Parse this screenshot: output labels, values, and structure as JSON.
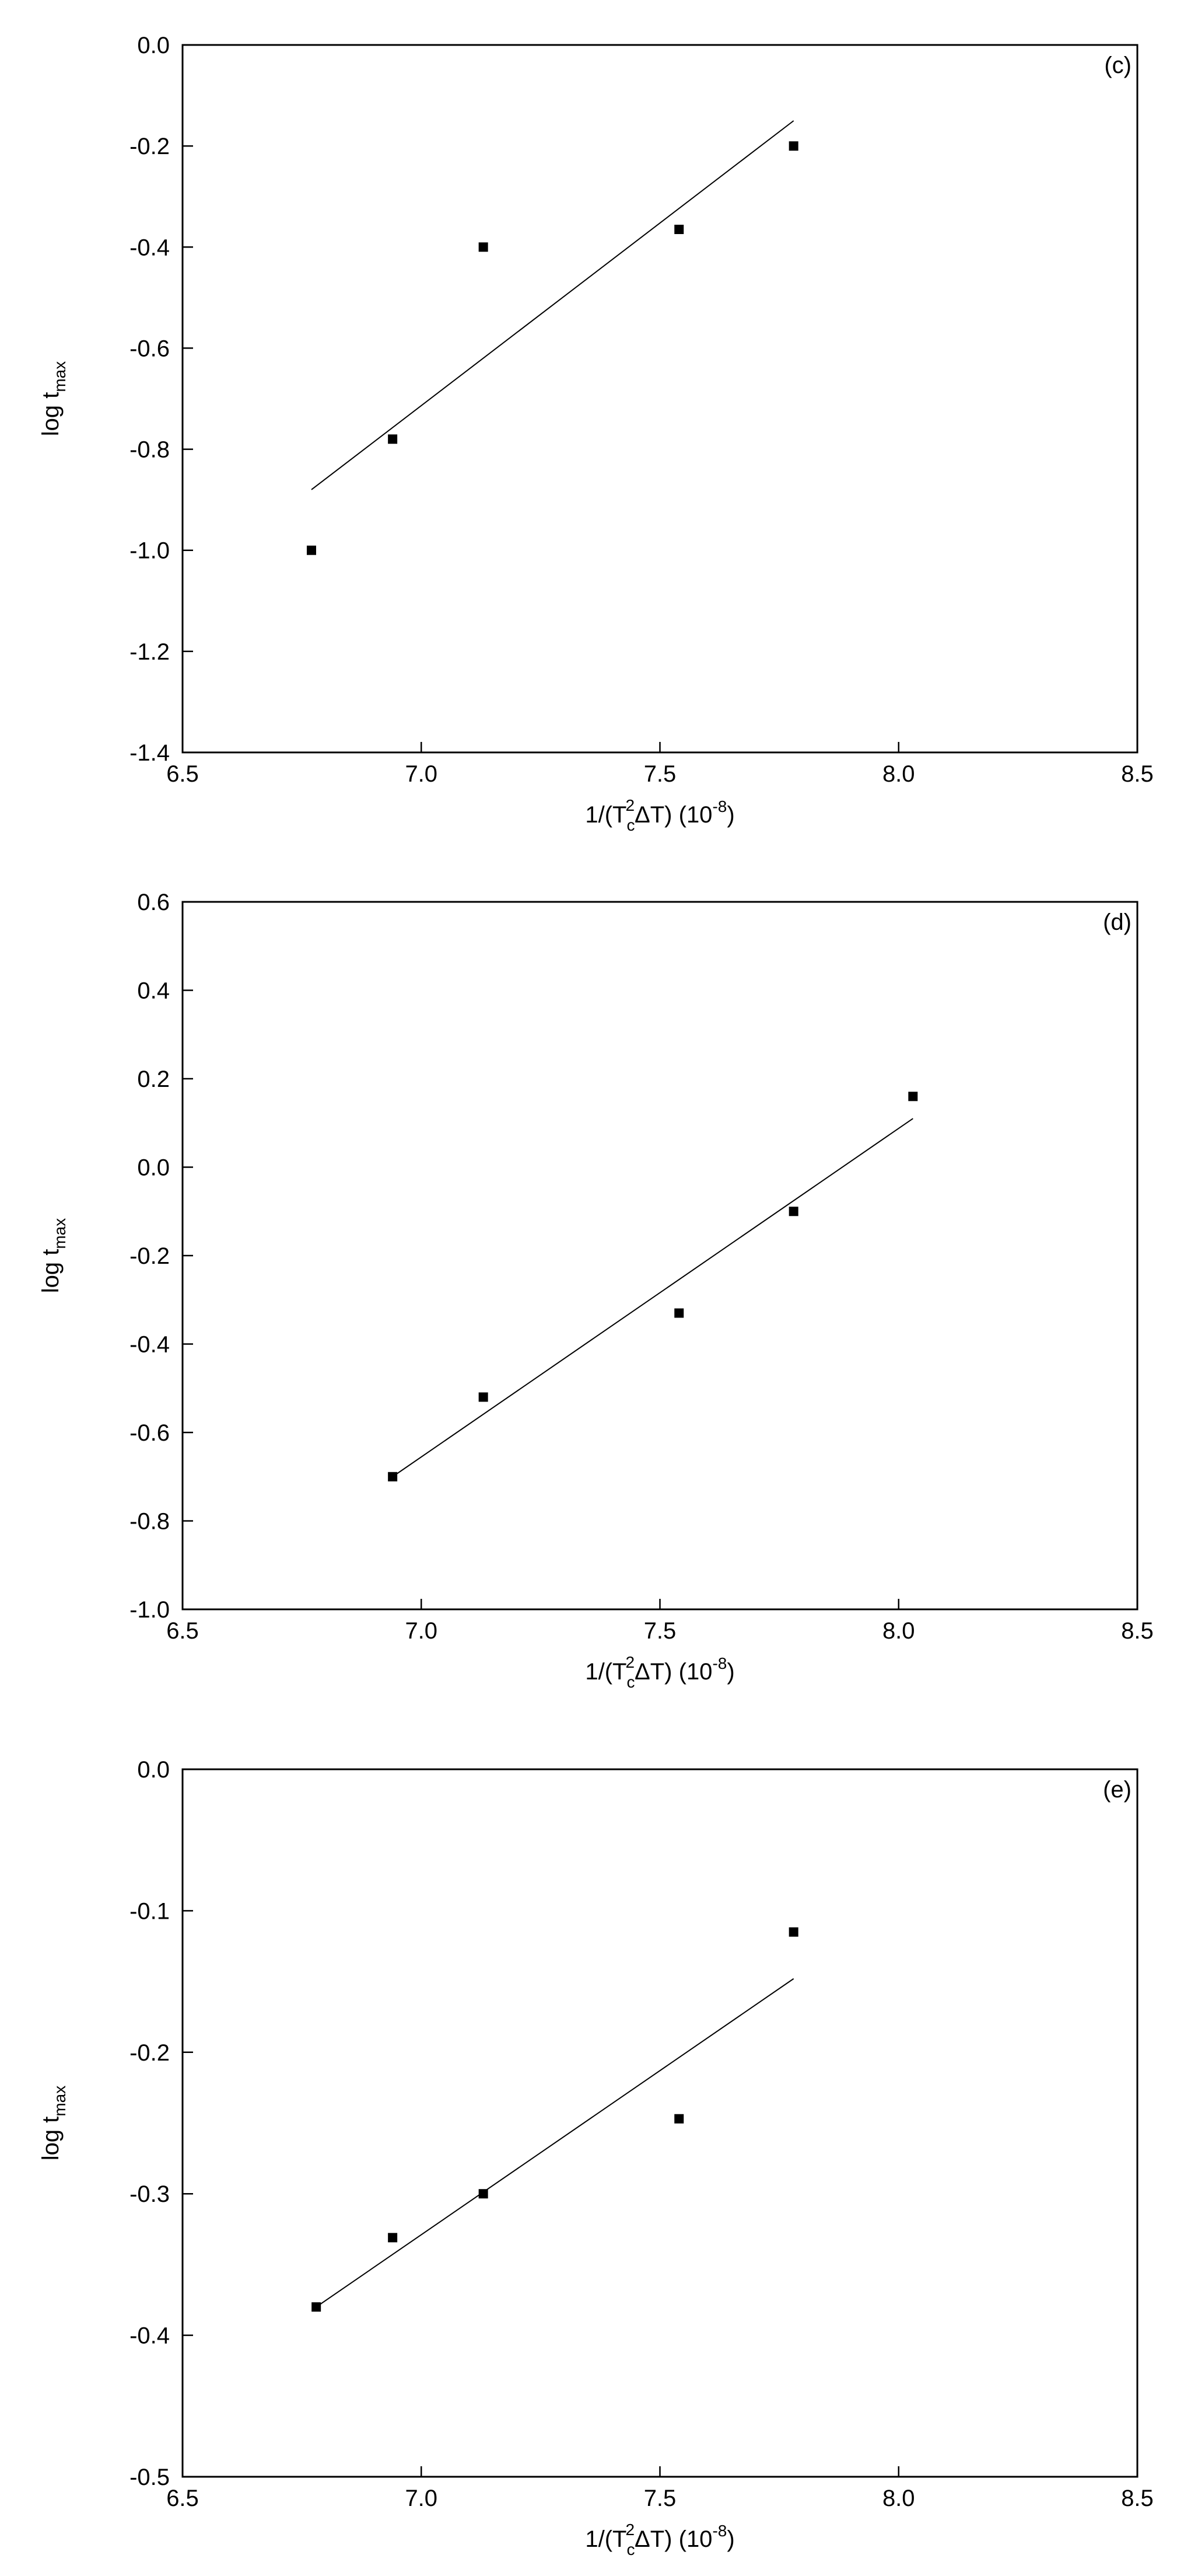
{
  "chart_data": [
    {
      "type": "scatter",
      "annotation": "(c)",
      "x_label": [
        "1/(T",
        "c",
        "2",
        "ΔT) (10",
        "-8",
        ")"
      ],
      "y_label": [
        "log t",
        "max"
      ],
      "x": [
        6.77,
        6.94,
        7.13,
        7.54,
        7.78
      ],
      "values": [
        -1.0,
        -0.78,
        -0.4,
        -0.365,
        -0.2
      ],
      "color": "#000000",
      "fit_line": {
        "x": [
          6.77,
          7.78
        ],
        "y": [
          -0.88,
          -0.15
        ]
      },
      "xlim": [
        6.5,
        8.5
      ],
      "xticks": [
        6.5,
        {
          "value": 7.0,
          "label": "7.0"
        },
        7.5,
        {
          "value": 8.0,
          "label": "8.0"
        },
        8.5
      ],
      "ylim": [
        -1.4,
        0.0
      ],
      "yticks": [
        -1.4,
        -1.2,
        {
          "value": -1.0,
          "label": "-1.0"
        },
        -0.8,
        -0.6,
        -0.4,
        -0.2,
        {
          "value": 0.0,
          "label": "0.0"
        }
      ]
    },
    {
      "type": "scatter",
      "annotation": "(d)",
      "x_label": [
        "1/(T",
        "c",
        "2",
        "ΔT) (10",
        "-8",
        ")"
      ],
      "y_label": [
        "log t",
        "max"
      ],
      "x": [
        6.94,
        7.13,
        7.54,
        7.78,
        8.03
      ],
      "values": [
        -0.7,
        -0.52,
        -0.33,
        -0.1,
        0.16
      ],
      "color": "#000000",
      "fit_line": {
        "x": [
          6.94,
          8.03
        ],
        "y": [
          -0.7,
          0.11
        ]
      },
      "xlim": [
        6.5,
        8.5
      ],
      "xticks": [
        6.5,
        {
          "value": 7.0,
          "label": "7.0"
        },
        7.5,
        {
          "value": 8.0,
          "label": "8.0"
        },
        8.5
      ],
      "ylim": [
        -1.0,
        0.6
      ],
      "yticks": [
        {
          "value": -1.0,
          "label": "-1.0"
        },
        -0.8,
        -0.6,
        -0.4,
        -0.2,
        {
          "value": 0.0,
          "label": "0.0"
        },
        0.2,
        0.4,
        0.6
      ]
    },
    {
      "type": "scatter",
      "annotation": "(e)",
      "x_label": [
        "1/(T",
        "c",
        "2",
        "ΔT) (10",
        "-8",
        ")"
      ],
      "y_label": [
        "log t",
        "max"
      ],
      "x": [
        6.78,
        6.94,
        7.13,
        7.54,
        7.78
      ],
      "values": [
        -0.38,
        -0.331,
        -0.3,
        -0.247,
        -0.115
      ],
      "color": "#000000",
      "fit_line": {
        "x": [
          6.78,
          7.78
        ],
        "y": [
          -0.38,
          -0.148
        ]
      },
      "xlim": [
        6.5,
        8.5
      ],
      "xticks": [
        6.5,
        {
          "value": 7.0,
          "label": "7.0"
        },
        7.5,
        {
          "value": 8.0,
          "label": "8.0"
        },
        8.5
      ],
      "ylim": [
        -0.5,
        0.0
      ],
      "yticks": [
        -0.5,
        -0.4,
        -0.3,
        -0.2,
        -0.1,
        {
          "value": 0.0,
          "label": "0.0"
        }
      ]
    }
  ]
}
